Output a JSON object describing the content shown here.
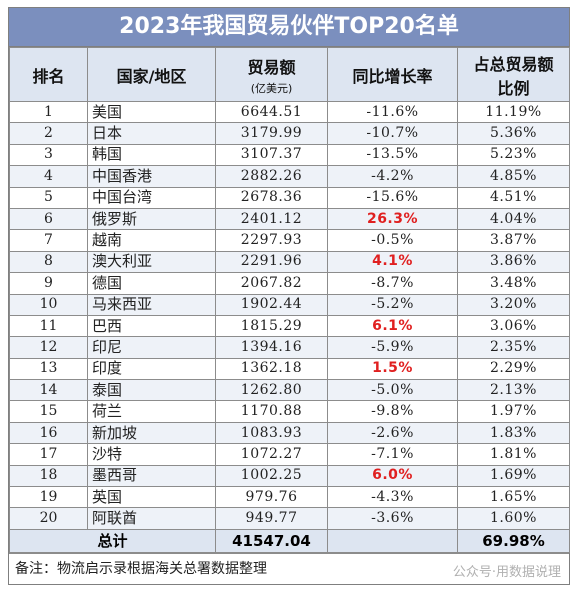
{
  "title": "2023年我国贸易伙伴TOP20名单",
  "headers": {
    "rank": "排名",
    "region": "国家/地区",
    "amount": "贸易额",
    "amount_unit": "(亿美元)",
    "yoy": "同比增长率",
    "share_line1": "占总贸易额",
    "share_line2": "比例"
  },
  "rows": [
    {
      "rank": "1",
      "name": "美国",
      "amount": "6644.51",
      "yoy": "-11.6%",
      "share": "11.19%",
      "positive": false
    },
    {
      "rank": "2",
      "name": "日本",
      "amount": "3179.99",
      "yoy": "-10.7%",
      "share": "5.36%",
      "positive": false
    },
    {
      "rank": "3",
      "name": "韩国",
      "amount": "3107.37",
      "yoy": "-13.5%",
      "share": "5.23%",
      "positive": false
    },
    {
      "rank": "4",
      "name": "中国香港",
      "amount": "2882.26",
      "yoy": "-4.2%",
      "share": "4.85%",
      "positive": false
    },
    {
      "rank": "5",
      "name": "中国台湾",
      "amount": "2678.36",
      "yoy": "-15.6%",
      "share": "4.51%",
      "positive": false
    },
    {
      "rank": "6",
      "name": "俄罗斯",
      "amount": "2401.12",
      "yoy": "26.3%",
      "share": "4.04%",
      "positive": true
    },
    {
      "rank": "7",
      "name": "越南",
      "amount": "2297.93",
      "yoy": "-0.5%",
      "share": "3.87%",
      "positive": false
    },
    {
      "rank": "8",
      "name": "澳大利亚",
      "amount": "2291.96",
      "yoy": "4.1%",
      "share": "3.86%",
      "positive": true
    },
    {
      "rank": "9",
      "name": "德国",
      "amount": "2067.82",
      "yoy": "-8.7%",
      "share": "3.48%",
      "positive": false
    },
    {
      "rank": "10",
      "name": "马来西亚",
      "amount": "1902.44",
      "yoy": "-5.2%",
      "share": "3.20%",
      "positive": false
    },
    {
      "rank": "11",
      "name": "巴西",
      "amount": "1815.29",
      "yoy": "6.1%",
      "share": "3.06%",
      "positive": true
    },
    {
      "rank": "12",
      "name": "印尼",
      "amount": "1394.16",
      "yoy": "-5.9%",
      "share": "2.35%",
      "positive": false
    },
    {
      "rank": "13",
      "name": "印度",
      "amount": "1362.18",
      "yoy": "1.5%",
      "share": "2.29%",
      "positive": true
    },
    {
      "rank": "14",
      "name": "泰国",
      "amount": "1262.80",
      "yoy": "-5.0%",
      "share": "2.13%",
      "positive": false
    },
    {
      "rank": "15",
      "name": "荷兰",
      "amount": "1170.88",
      "yoy": "-9.8%",
      "share": "1.97%",
      "positive": false
    },
    {
      "rank": "16",
      "name": "新加坡",
      "amount": "1083.93",
      "yoy": "-2.6%",
      "share": "1.83%",
      "positive": false
    },
    {
      "rank": "17",
      "name": "沙特",
      "amount": "1072.27",
      "yoy": "-7.1%",
      "share": "1.81%",
      "positive": false
    },
    {
      "rank": "18",
      "name": "墨西哥",
      "amount": "1002.25",
      "yoy": "6.0%",
      "share": "1.69%",
      "positive": true
    },
    {
      "rank": "19",
      "name": "英国",
      "amount": "979.76",
      "yoy": "-4.3%",
      "share": "1.65%",
      "positive": false
    },
    {
      "rank": "20",
      "name": "阿联酋",
      "amount": "949.77",
      "yoy": "-3.6%",
      "share": "1.60%",
      "positive": false
    }
  ],
  "total": {
    "label": "总计",
    "amount": "41547.04",
    "share": "69.98%"
  },
  "note": "备注：物流启示录根据海关总署数据整理",
  "watermark": "公众号·用数据说理",
  "colors": {
    "title_bg": "#7b8fbe",
    "header_bg": "#dde5f1",
    "positive": "#e02020"
  }
}
